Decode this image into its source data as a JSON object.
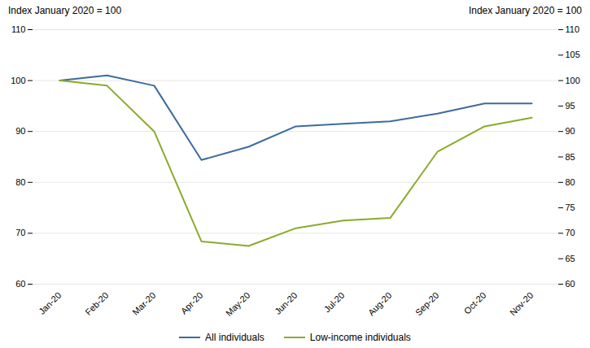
{
  "chart_data": {
    "type": "line",
    "categories": [
      "Jan-20",
      "Feb-20",
      "Mar-20",
      "Apr-20",
      "May-20",
      "Jun-20",
      "Jul-20",
      "Aug-20",
      "Sep-20",
      "Oct-20",
      "Nov-20"
    ],
    "series": [
      {
        "name": "All individuals",
        "color": "#3d6b9e",
        "values": [
          100,
          101,
          99,
          84.4,
          87.0,
          91.0,
          91.5,
          92.0,
          93.5,
          95.5,
          95.5
        ]
      },
      {
        "name": "Low-income individuals",
        "color": "#8aab2a",
        "values": [
          100,
          99,
          90,
          68.4,
          67.5,
          71.0,
          72.5,
          73.0,
          86.0,
          91.0,
          92.7
        ]
      }
    ],
    "ylabel": "Index January 2020 = 100",
    "y2label": "Index January 2020 = 100",
    "ylim": [
      60,
      110
    ],
    "yticks": [
      60,
      70,
      80,
      90,
      100,
      110
    ],
    "y2lim": [
      60,
      110
    ],
    "y2ticks": [
      60,
      65,
      70,
      75,
      80,
      85,
      90,
      95,
      100,
      105,
      110
    ],
    "grid": true,
    "legend": "bottom"
  }
}
